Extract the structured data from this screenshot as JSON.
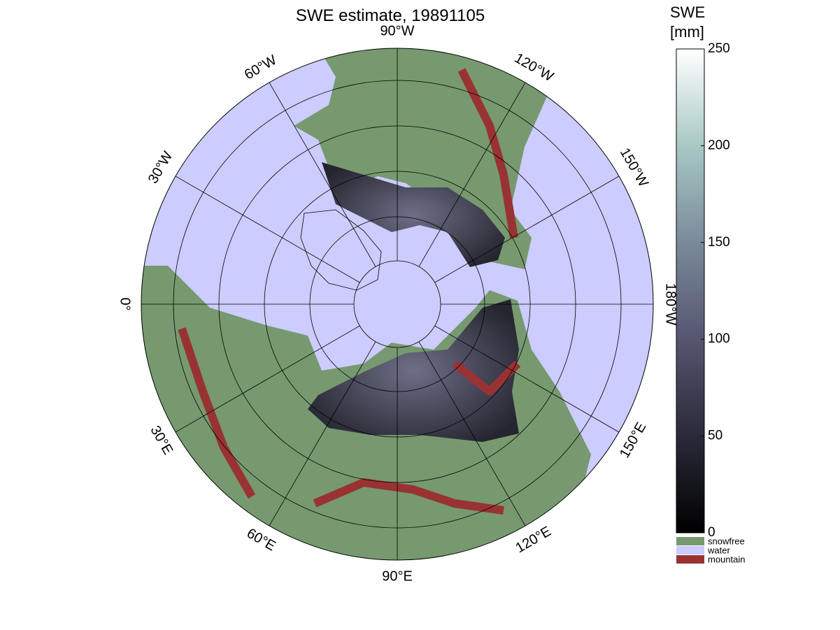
{
  "map": {
    "title": "SWE estimate, 19891105",
    "longitude_labels": [
      "90°W",
      "120°W",
      "150°W",
      "180°W",
      "150°E",
      "120°E",
      "90°E",
      "60°E",
      "30°E",
      "0°",
      "30°W",
      "60°W"
    ],
    "colorbar": {
      "label": [
        "SWE",
        "[mm]"
      ],
      "range": [
        0,
        250
      ],
      "ticks": [
        0,
        50,
        100,
        150,
        200,
        250
      ],
      "colormap": [
        "#000000",
        "#2a2a3a",
        "#555570",
        "#7a8a9a",
        "#a8c8c4",
        "#ffffff"
      ]
    },
    "legend": [
      {
        "name": "snowfree",
        "color": "#77996f"
      },
      {
        "name": "water",
        "color": "#ccccff"
      },
      {
        "name": "mountain",
        "color": "#993333"
      }
    ]
  }
}
